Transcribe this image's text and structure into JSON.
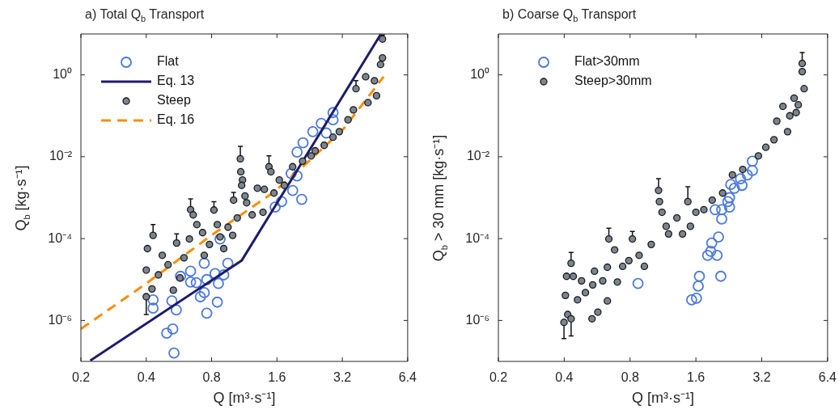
{
  "chart_data": [
    {
      "type": "scatter",
      "title": "a) Total Q$_{b}$ Transport",
      "xlabel": "Q [m³·s⁻¹]",
      "ylabel": "Q$_{b}$ [kg·s⁻¹]",
      "log": "xy",
      "legend": "top left",
      "marker": "circle",
      "xlim": [
        0.2,
        6.4
      ],
      "xticks": [
        0.2,
        0.4,
        0.8,
        1.6,
        3.2,
        6.4
      ],
      "ylim": [
        1e-07,
        10
      ],
      "yticks": [
        {
          "value": 1e-06,
          "label": "10⁻⁶"
        },
        {
          "value": 0.0001,
          "label": "10⁻⁴"
        },
        {
          "value": 0.01,
          "label": "10⁻²"
        },
        {
          "value": 1,
          "label": "10⁰"
        }
      ],
      "series": [
        {
          "name": "Flat",
          "color": "#4a78e0",
          "x": [
            0.43,
            0.43,
            0.497,
            0.53,
            0.537,
            0.55,
            0.525,
            0.575,
            0.64,
            0.64,
            0.68,
            0.71,
            0.74,
            0.74,
            0.76,
            0.76,
            0.83,
            0.85,
            0.86,
            0.875,
            0.91,
            0.95,
            1.57,
            1.68,
            1.86,
            1.89,
            1.98,
            2.08,
            1.98,
            2.11,
            2.34,
            2.56,
            2.7,
            2.9,
            2.9
          ],
          "values": [
            3.2e-06,
            2e-06,
            4.9e-07,
            6.2e-07,
            1.6e-07,
            1.8e-06,
            3e-06,
            1.2e-05,
            1.6e-05,
            8.7e-06,
            8.4e-06,
            3.8e-06,
            2.5e-05,
            4.8e-06,
            1e-05,
            1.5e-06,
            1.4e-05,
            2.8e-06,
            8e-06,
            9.8e-05,
            1.3e-05,
            2.5e-05,
            0.00059,
            0.0008,
            0.0039,
            0.0015,
            0.0034,
            0.00091,
            0.013,
            0.022,
            0.041,
            0.065,
            0.038,
            0.12,
            0.08
          ]
        },
        {
          "name": "Eq. 13",
          "type": "line",
          "color": "#1c1c6b",
          "marker": "none",
          "line_style": "solid",
          "x": [
            0.221,
            1.1,
            4.82
          ],
          "values": [
            1.05e-07,
            2.9e-05,
            10
          ]
        },
        {
          "name": "Steep",
          "color": "#7a8590",
          "x": [
            0.4,
            0.405,
            0.43,
            0.4,
            0.425,
            0.455,
            0.474,
            0.504,
            0.533,
            0.552,
            0.572,
            0.597,
            0.64,
            0.632,
            0.658,
            0.684,
            0.727,
            0.74,
            0.782,
            0.82,
            0.85,
            0.875,
            0.91,
            0.952,
            1.0,
            1.01,
            1.05,
            1.085,
            1.09,
            1.11,
            1.1,
            1.14,
            1.16,
            1.23,
            1.3,
            1.38,
            1.4,
            1.47,
            1.5,
            1.55,
            1.64,
            1.73,
            1.89,
            2.1,
            2.3,
            2.4,
            2.64,
            2.9,
            3.1,
            3.4,
            3.6,
            3.7,
            4.1,
            4.2,
            4.5,
            4.6,
            4.8,
            4.9,
            4.9
          ],
          "values": [
            1.7e-05,
            5.7e-05,
            0.00012,
            3.8e-06,
            5.9e-06,
            1.3e-05,
            3.9e-05,
            2.3e-05,
            5.5e-06,
            7.8e-05,
            1.1e-05,
            3.4e-05,
            0.00051,
            9.8e-05,
            0.00038,
            0.00022,
            0.00014,
            3.9e-05,
            7.2e-05,
            0.0005,
            0.00022,
            0.00011,
            5.7e-05,
            0.00019,
            0.00012,
            0.00087,
            0.00032,
            0.0089,
            0.0043,
            0.0027,
            0.002,
            0.0011,
            0.00075,
            0.00038,
            0.0017,
            0.00044,
            0.0016,
            0.0057,
            0.0043,
            0.0013,
            0.0027,
            0.002,
            0.0057,
            0.0078,
            0.0105,
            0.014,
            0.019,
            0.03,
            0.041,
            0.08,
            0.14,
            0.46,
            0.9,
            0.21,
            0.72,
            0.31,
            1.8,
            2.6,
            7.5
          ],
          "errors": [
            null,
            null,
            [
              0.00012,
              0.00022
            ],
            [
              1.4e-06,
              3.8e-06
            ],
            null,
            null,
            null,
            null,
            null,
            [
              7.8e-05,
              0.00013
            ],
            null,
            null,
            [
              0.00051,
              0.00093
            ],
            null,
            null,
            null,
            null,
            null,
            null,
            [
              0.0005,
              0.0008
            ],
            null,
            null,
            null,
            null,
            null,
            [
              0.00087,
              0.00135
            ],
            null,
            [
              0.0089,
              0.018
            ],
            null,
            null,
            null,
            null,
            null,
            null,
            null,
            null,
            null,
            [
              0.0057,
              0.0105
            ],
            null,
            null,
            null,
            null,
            null,
            null,
            null,
            null,
            null,
            null,
            null,
            null,
            null,
            [
              0.46,
              0.72
            ],
            null,
            null,
            null,
            null,
            null,
            null,
            [
              7.5,
              9.5
            ]
          ]
        },
        {
          "name": "Eq. 16",
          "type": "line",
          "color": "#ff8c00",
          "marker": "none",
          "line_style": "dashed",
          "x": [
            0.2,
            0.4,
            0.78,
            1.54,
            2.17,
            3.24,
            4.96
          ],
          "values": [
            6.2e-07,
            8e-06,
            0.00011,
            0.00135,
            0.0066,
            0.048,
            0.9
          ]
        }
      ]
    },
    {
      "type": "scatter",
      "title": "b) Coarse Q$_{b}$ Transport",
      "xlabel": "Q [m³·s⁻¹]",
      "ylabel": "Q$_{b}$ > 30 mm [kg·s⁻¹]",
      "log": "xy",
      "legend": "top left",
      "marker": "circle",
      "xlim": [
        0.2,
        6.4
      ],
      "xticks": [
        0.2,
        0.4,
        0.8,
        1.6,
        3.2,
        6.4
      ],
      "ylim": [
        1e-07,
        10
      ],
      "yticks": [
        {
          "value": 1e-06,
          "label": "10⁻⁶"
        },
        {
          "value": 0.0001,
          "label": "10⁻⁴"
        },
        {
          "value": 0.01,
          "label": "10⁻²"
        },
        {
          "value": 1,
          "label": "10⁰"
        }
      ],
      "series": [
        {
          "name": "Flat>30mm",
          "color": "#4a78e0",
          "x": [
            0.87,
            1.53,
            1.61,
            1.64,
            1.66,
            1.81,
            1.87,
            1.89,
            2.0,
            2.03,
            2.08,
            1.96,
            2.1,
            2.1,
            2.24,
            2.28,
            2.28,
            2.31,
            2.4,
            2.56,
            2.6,
            2.75,
            2.9,
            2.9
          ],
          "values": [
            8e-06,
            3.2e-06,
            3.5e-06,
            6.9e-06,
            1.2e-05,
            3.9e-05,
            4.9e-05,
            7.8e-05,
            3.9e-05,
            0.00011,
            1.2e-05,
            0.00051,
            0.00051,
            0.0003,
            0.0008,
            0.00059,
            0.001,
            0.0021,
            0.0017,
            0.0029,
            0.002,
            0.0036,
            0.0046,
            0.0078
          ]
        },
        {
          "name": "Steep>30mm",
          "color": "#7a8590",
          "x": [
            0.399,
            0.405,
            0.41,
            0.415,
            0.43,
            0.43,
            0.44,
            0.46,
            0.48,
            0.5,
            0.536,
            0.54,
            0.55,
            0.57,
            0.6,
            0.63,
            0.63,
            0.64,
            0.68,
            0.7,
            0.74,
            0.79,
            0.82,
            0.88,
            0.93,
            1.0,
            1.08,
            1.09,
            1.12,
            1.17,
            1.2,
            1.31,
            1.39,
            1.47,
            1.51,
            1.6,
            1.74,
            1.9,
            2.12,
            2.35,
            2.62,
            3.09,
            3.34,
            3.64,
            3.75,
            4.0,
            4.2,
            4.3,
            4.5,
            4.6,
            4.7,
            4.9,
            4.9,
            5.0
          ],
          "values": [
            9e-07,
            4.1e-06,
            1.2e-05,
            1.4e-06,
            2.5e-05,
            1.1e-06,
            1.2e-05,
            3.2e-06,
            9.3e-06,
            4.8e-06,
            1.1e-06,
            7.4e-06,
            1.6e-05,
            1.6e-06,
            9.3e-06,
            2e-05,
            3e-06,
            9.8e-05,
            5.3e-05,
            8.7e-06,
            2.1e-05,
            2.9e-05,
            9.8e-05,
            3.9e-05,
            2.1e-05,
            7.2e-05,
            0.0015,
            0.0008,
            0.00044,
            0.0002,
            0.00013,
            0.00032,
            0.00013,
            0.0008,
            0.0002,
            0.00044,
            0.00051,
            0.00087,
            0.0013,
            0.0036,
            0.0049,
            0.0105,
            0.017,
            0.026,
            0.074,
            0.17,
            0.041,
            0.1,
            0.27,
            0.12,
            0.185,
            1.2,
            1.9,
            0.46
          ],
          "errors": [
            [
              3.6e-07,
              9e-07
            ],
            null,
            null,
            null,
            [
              2.5e-05,
              4.6e-05
            ],
            [
              4.2e-07,
              1.1e-06
            ],
            null,
            null,
            null,
            null,
            null,
            null,
            null,
            null,
            null,
            null,
            null,
            [
              9.8e-05,
              0.00018
            ],
            null,
            null,
            null,
            null,
            [
              9.8e-05,
              0.00015
            ],
            null,
            null,
            null,
            [
              0.0015,
              0.0029
            ],
            null,
            null,
            null,
            null,
            null,
            null,
            [
              0.0008,
              0.00185
            ],
            null,
            null,
            null,
            null,
            null,
            null,
            null,
            null,
            null,
            null,
            null,
            null,
            null,
            null,
            null,
            null,
            null,
            null,
            [
              1.9,
              3.5
            ],
            null
          ]
        }
      ]
    }
  ]
}
